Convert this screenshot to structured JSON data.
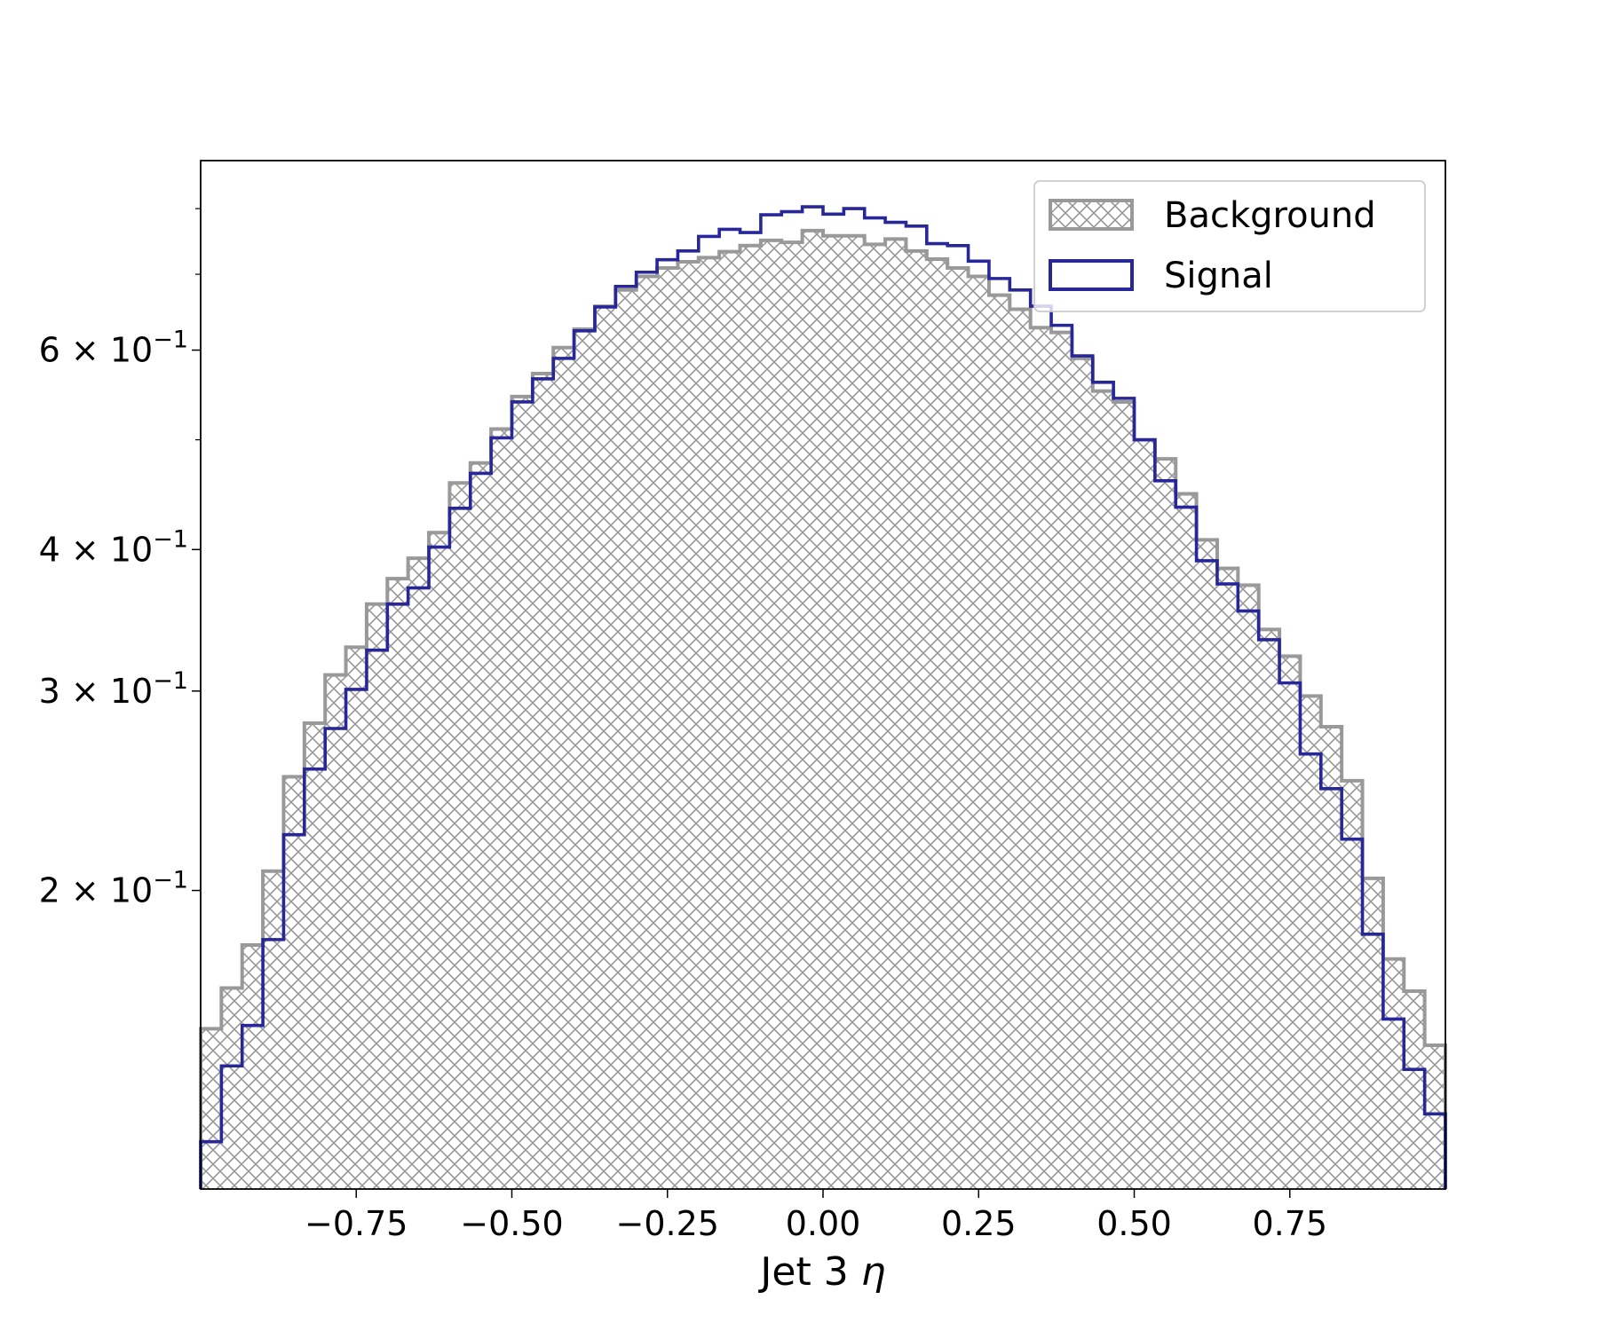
{
  "chart_data": {
    "type": "histogram",
    "xlabel": "Jet 3 η",
    "xlabel_parts": {
      "text": "Jet 3 ",
      "symbol": "η"
    },
    "ylabel": "",
    "xlim": [
      -1.0,
      1.0
    ],
    "ylim": [
      0.109,
      0.882
    ],
    "yscale": "log",
    "grid": false,
    "legend_placement": "top-right",
    "bin_edges_range": [
      -1.0,
      1.0
    ],
    "n_bins": 60,
    "x_ticks": [
      -0.75,
      -0.5,
      -0.25,
      0.0,
      0.25,
      0.5,
      0.75
    ],
    "x_tick_labels": [
      "−0.75",
      "−0.50",
      "−0.25",
      "0.00",
      "0.25",
      "0.50",
      "0.75"
    ],
    "y_ticks": [
      0.2,
      0.3,
      0.4,
      0.6
    ],
    "y_tick_labels": [
      {
        "mantissa": "2",
        "base": "10",
        "exp": "−1"
      },
      {
        "mantissa": "3",
        "base": "10",
        "exp": "−1"
      },
      {
        "mantissa": "4",
        "base": "10",
        "exp": "−1"
      },
      {
        "mantissa": "6",
        "base": "10",
        "exp": "−1"
      }
    ],
    "y_minor_ticks": [
      0.5,
      0.7,
      0.8
    ],
    "series": [
      {
        "name": "Background",
        "style": "hatched-step-filled",
        "color": "#999999",
        "values": [
          0.151,
          0.164,
          0.179,
          0.208,
          0.252,
          0.281,
          0.31,
          0.328,
          0.358,
          0.377,
          0.393,
          0.414,
          0.458,
          0.477,
          0.511,
          0.546,
          0.572,
          0.603,
          0.626,
          0.656,
          0.678,
          0.697,
          0.709,
          0.718,
          0.724,
          0.733,
          0.742,
          0.75,
          0.747,
          0.765,
          0.757,
          0.757,
          0.744,
          0.752,
          0.734,
          0.722,
          0.709,
          0.697,
          0.671,
          0.652,
          0.628,
          0.622,
          0.59,
          0.552,
          0.54,
          0.5,
          0.481,
          0.448,
          0.408,
          0.385,
          0.372,
          0.34,
          0.322,
          0.297,
          0.279,
          0.25,
          0.205,
          0.174,
          0.163,
          0.146
        ]
      },
      {
        "name": "Signal",
        "style": "step",
        "color": "#27279a",
        "values": [
          0.12,
          0.14,
          0.152,
          0.181,
          0.224,
          0.256,
          0.278,
          0.301,
          0.326,
          0.358,
          0.37,
          0.402,
          0.435,
          0.467,
          0.502,
          0.54,
          0.566,
          0.59,
          0.624,
          0.655,
          0.683,
          0.703,
          0.721,
          0.734,
          0.756,
          0.767,
          0.762,
          0.79,
          0.795,
          0.803,
          0.791,
          0.8,
          0.785,
          0.778,
          0.772,
          0.745,
          0.742,
          0.719,
          0.694,
          0.678,
          0.656,
          0.631,
          0.593,
          0.562,
          0.544,
          0.5,
          0.46,
          0.436,
          0.391,
          0.373,
          0.353,
          0.333,
          0.305,
          0.264,
          0.246,
          0.222,
          0.183,
          0.154,
          0.139,
          0.127
        ]
      }
    ]
  }
}
